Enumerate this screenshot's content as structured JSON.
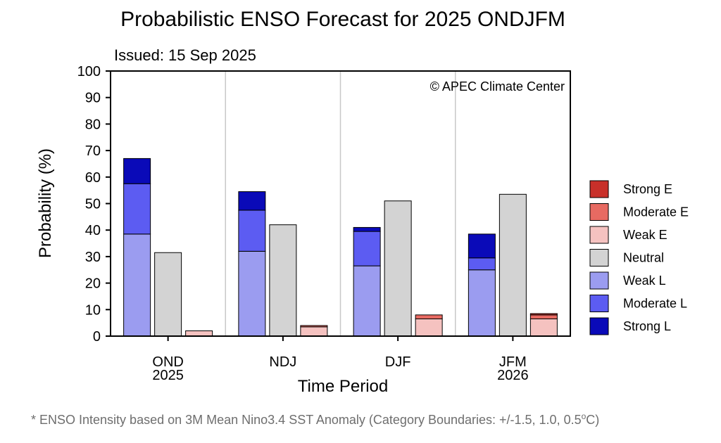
{
  "chart_data": {
    "type": "bar",
    "title": "Probabilistic ENSO Forecast for 2025 ONDJFM",
    "subtitle": "Issued: 15 Sep 2025",
    "credit": "© APEC Climate Center",
    "xlabel": "Time Period",
    "ylabel": "Probability (%)",
    "ylim": [
      0,
      100
    ],
    "yticks": [
      "0",
      "10",
      "20",
      "30",
      "40",
      "50",
      "60",
      "70",
      "80",
      "90",
      "100"
    ],
    "categories": [
      {
        "line1": "OND",
        "line2": "2025"
      },
      {
        "line1": "NDJ",
        "line2": ""
      },
      {
        "line1": "DJF",
        "line2": ""
      },
      {
        "line1": "JFM",
        "line2": "2026"
      }
    ],
    "series": [
      {
        "name": "Strong E",
        "color": "#c8302a",
        "group": "elnino",
        "values": [
          0,
          0,
          0,
          0.5
        ]
      },
      {
        "name": "Moderate E",
        "color": "#e76a62",
        "group": "elnino",
        "values": [
          0,
          0.5,
          1.5,
          1.5
        ]
      },
      {
        "name": "Weak E",
        "color": "#f5c2c0",
        "group": "elnino",
        "values": [
          2,
          3.5,
          6.5,
          6.5
        ]
      },
      {
        "name": "Neutral",
        "color": "#d3d3d3",
        "group": "neutral",
        "values": [
          31.5,
          42,
          51,
          53.5
        ]
      },
      {
        "name": "Weak L",
        "color": "#9b9cf0",
        "group": "lanina",
        "values": [
          38.5,
          32,
          26.5,
          25
        ]
      },
      {
        "name": "Moderate L",
        "color": "#5c5cf2",
        "group": "lanina",
        "values": [
          19,
          15.5,
          13,
          4.5
        ]
      },
      {
        "name": "Strong L",
        "color": "#0a0ab8",
        "group": "lanina",
        "values": [
          9.5,
          7,
          1.5,
          9
        ]
      }
    ],
    "grid": "vertical separators between periods",
    "legend_position": "right"
  },
  "footnote": {
    "main": "* ENSO Intensity based on 3M Mean Nino3.4 SST Anomaly (Category Boundaries: +/-1.5, 1.0, 0.5",
    "sup": "o",
    "tail": "C)"
  }
}
